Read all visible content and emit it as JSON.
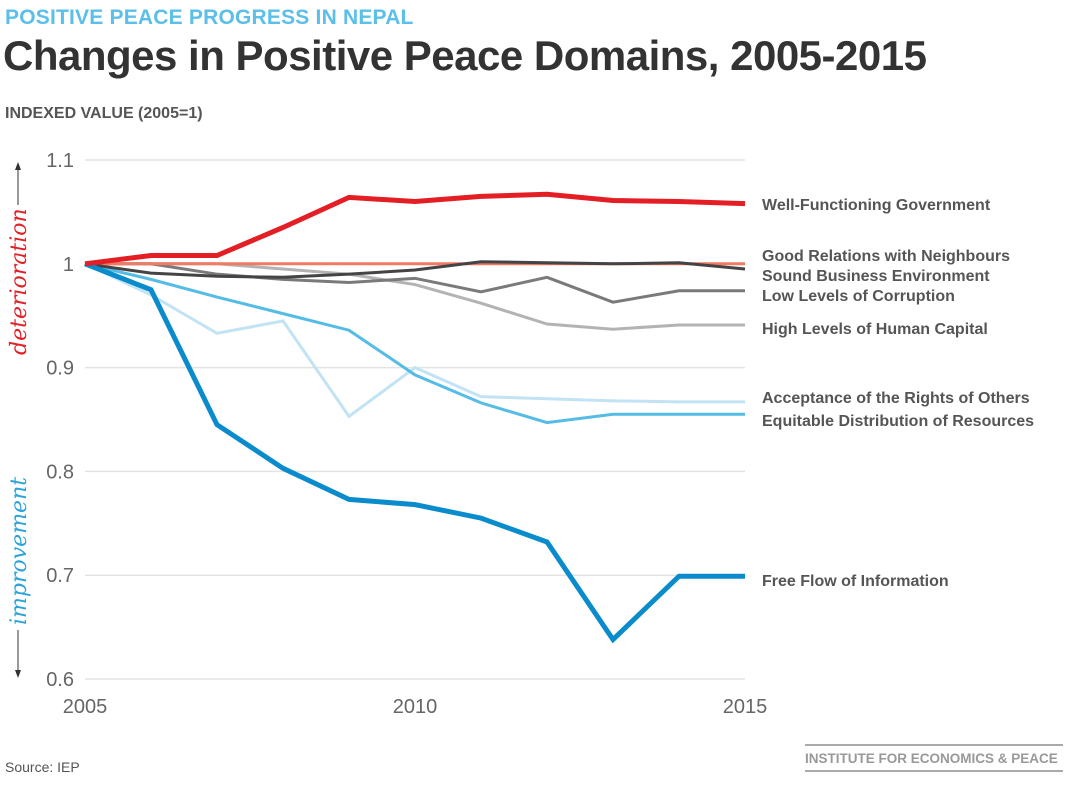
{
  "header": {
    "kicker": "POSITIVE PEACE PROGRESS IN NEPAL",
    "title": "Changes in Positive Peace Domains, 2005-2015",
    "ylabel": "INDEXED VALUE (2005=1)"
  },
  "footer": {
    "source": "Source: IEP",
    "logo": "INSTITUTE FOR ECONOMICS & PEACE"
  },
  "chart_data": {
    "type": "line",
    "title": "Changes in Positive Peace Domains, 2005-2015",
    "ylabel": "INDEXED VALUE (2005=1)",
    "xlabel": "",
    "x": [
      2005,
      2006,
      2007,
      2008,
      2009,
      2010,
      2011,
      2012,
      2013,
      2014,
      2015
    ],
    "xticks": [
      "2005",
      "2010",
      "2015"
    ],
    "yticks": [
      "1.1",
      "1",
      "0.9",
      "0.8",
      "0.7",
      "0.6"
    ],
    "ylim": [
      0.6,
      1.1
    ],
    "grid": true,
    "legend": "right (direct labels)",
    "annotations": {
      "up": "deterioration",
      "down": "improvement",
      "up_color": "#e31e24",
      "down_color": "#2aa3dc"
    },
    "series": [
      {
        "name": "Acceptance of the Rights of Others",
        "color": "#c2e3f4",
        "values": [
          1.0,
          0.97,
          0.933,
          0.945,
          0.853,
          0.9,
          0.872,
          0.87,
          0.868,
          0.867,
          0.867
        ]
      },
      {
        "name": "Equitable Distribution of Resources",
        "color": "#55bce6",
        "values": [
          1.0,
          0.985,
          0.968,
          0.952,
          0.936,
          0.893,
          0.866,
          0.847,
          0.855,
          0.855,
          0.855
        ]
      },
      {
        "name": "High Levels of Human Capital",
        "color": "#b3b3b3",
        "values": [
          1.0,
          1.0,
          1.0,
          0.995,
          0.99,
          0.98,
          0.962,
          0.942,
          0.937,
          0.941,
          0.941
        ]
      },
      {
        "name": "Low Levels of Corruption",
        "color": "#7a7a7a",
        "values": [
          1.0,
          1.0,
          0.99,
          0.985,
          0.982,
          0.986,
          0.973,
          0.987,
          0.963,
          0.974,
          0.974
        ]
      },
      {
        "name": "Good Relations with Neighbours",
        "color": "#f07a63",
        "values": [
          1.0,
          1.0,
          1.0,
          1.0,
          1.0,
          1.0,
          1.0,
          1.0,
          1.0,
          1.0,
          1.0
        ]
      },
      {
        "name": "Sound Business Environment",
        "color": "#444444",
        "values": [
          1.0,
          0.991,
          0.988,
          0.987,
          0.99,
          0.994,
          1.002,
          1.001,
          1.0,
          1.001,
          0.995
        ]
      },
      {
        "name": "Free Flow of Information",
        "color": "#0a8ccc",
        "values": [
          1.0,
          0.975,
          0.845,
          0.803,
          0.773,
          0.768,
          0.755,
          0.732,
          0.638,
          0.699,
          0.699
        ]
      },
      {
        "name": "Well-Functioning Government",
        "color": "#e31e24",
        "values": [
          1.0,
          1.008,
          1.008,
          1.035,
          1.064,
          1.06,
          1.065,
          1.067,
          1.061,
          1.06,
          1.058
        ]
      }
    ]
  }
}
